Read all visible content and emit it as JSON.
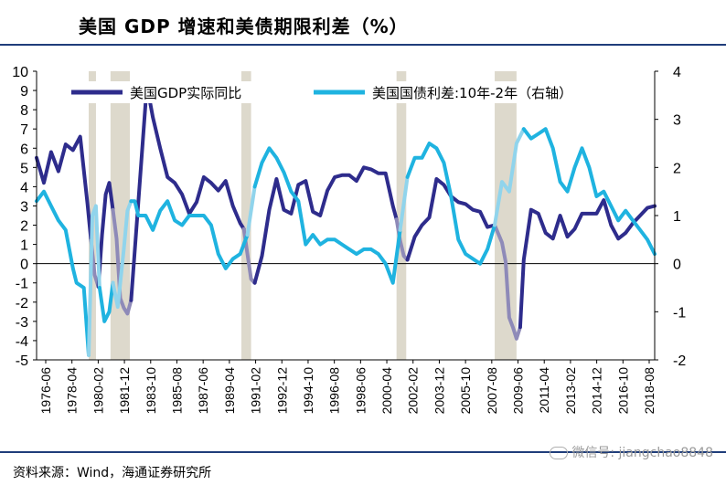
{
  "title": "美国 GDP 增速和美债期限利差（%）",
  "source": "资料来源：Wind，海通证券研究所",
  "watermark": "微信号: jiangchao8848",
  "colors": {
    "gdp": "#2e2c8c",
    "spread": "#1fb3e0",
    "shade": "#ddd9cc",
    "recession_gdp": "#8e8ab8",
    "recession_spread": "#90d4ec"
  },
  "chart_data": {
    "type": "line",
    "title": "美国 GDP 增速和美债期限利差（%）",
    "legend_position": "top",
    "y_left": {
      "ylim": [
        -5,
        10
      ],
      "ticks": [
        -5,
        -4,
        -3,
        -2,
        -1,
        0,
        1,
        2,
        3,
        4,
        5,
        6,
        7,
        8,
        9,
        10
      ]
    },
    "y_right": {
      "ylim": [
        -2,
        4
      ],
      "ticks": [
        -2,
        -1,
        0,
        1,
        2,
        3,
        4
      ]
    },
    "x_range": [
      "1976-06",
      "2018-12"
    ],
    "x_tick_labels": [
      "1976-06",
      "1978-04",
      "1980-02",
      "1981-12",
      "1983-10",
      "1985-08",
      "1987-06",
      "1989-04",
      "1991-02",
      "1992-12",
      "1994-10",
      "1996-08",
      "1998-06",
      "2000-04",
      "2002-02",
      "2003-12",
      "2005-10",
      "2007-08",
      "2009-06",
      "2011-04",
      "2013-02",
      "2014-12",
      "2016-10",
      "2018-08"
    ],
    "recessions": [
      [
        "1980-01",
        "1980-07"
      ],
      [
        "1981-07",
        "1982-11"
      ],
      [
        "1990-07",
        "1991-03"
      ],
      [
        "2001-03",
        "2001-11"
      ],
      [
        "2007-12",
        "2009-06"
      ]
    ],
    "series": [
      {
        "name": "美国GDP实际同比",
        "axis": "left",
        "x": [
          "1976-06",
          "1976-12",
          "1977-06",
          "1977-12",
          "1978-06",
          "1978-12",
          "1979-06",
          "1979-12",
          "1980-03",
          "1980-06",
          "1980-09",
          "1980-12",
          "1981-03",
          "1981-06",
          "1981-09",
          "1981-12",
          "1982-03",
          "1982-06",
          "1982-09",
          "1982-12",
          "1983-06",
          "1983-12",
          "1984-03",
          "1984-06",
          "1984-12",
          "1985-06",
          "1985-12",
          "1986-06",
          "1986-12",
          "1987-06",
          "1987-12",
          "1988-06",
          "1988-12",
          "1989-06",
          "1989-12",
          "1990-06",
          "1990-09",
          "1990-12",
          "1991-03",
          "1991-06",
          "1991-12",
          "1992-06",
          "1992-12",
          "1993-06",
          "1993-12",
          "1994-06",
          "1994-12",
          "1995-06",
          "1995-12",
          "1996-06",
          "1996-12",
          "1997-06",
          "1997-12",
          "1998-06",
          "1998-12",
          "1999-06",
          "1999-12",
          "2000-06",
          "2000-12",
          "2001-03",
          "2001-06",
          "2001-09",
          "2001-12",
          "2002-06",
          "2002-12",
          "2003-06",
          "2003-12",
          "2004-06",
          "2004-12",
          "2005-06",
          "2005-12",
          "2006-06",
          "2006-12",
          "2007-06",
          "2007-12",
          "2008-06",
          "2008-09",
          "2008-12",
          "2009-03",
          "2009-06",
          "2009-09",
          "2009-12",
          "2010-06",
          "2010-12",
          "2011-06",
          "2011-12",
          "2012-06",
          "2012-12",
          "2013-06",
          "2013-12",
          "2014-06",
          "2014-12",
          "2015-06",
          "2015-12",
          "2016-06",
          "2016-12",
          "2017-06",
          "2017-12",
          "2018-06",
          "2018-12"
        ],
        "values": [
          5.5,
          4.2,
          5.8,
          4.8,
          6.2,
          5.9,
          6.6,
          3.1,
          1.2,
          -0.6,
          -1.2,
          1.5,
          3.6,
          4.2,
          2.8,
          1.3,
          -1.8,
          -2.3,
          -2.6,
          -1.9,
          3.2,
          8.4,
          8.6,
          7.6,
          6.0,
          4.5,
          4.2,
          3.6,
          2.6,
          3.2,
          4.5,
          4.2,
          3.8,
          4.3,
          3.0,
          2.1,
          1.8,
          0.5,
          -0.8,
          -1.0,
          0.4,
          2.8,
          4.4,
          2.8,
          2.6,
          4.1,
          4.3,
          2.7,
          2.5,
          3.8,
          4.5,
          4.6,
          4.6,
          4.3,
          5.0,
          4.9,
          4.7,
          4.7,
          3.0,
          2.3,
          1.2,
          0.4,
          0.2,
          1.4,
          2.0,
          2.4,
          4.4,
          4.1,
          3.5,
          3.2,
          3.1,
          2.8,
          2.7,
          1.9,
          2.0,
          1.1,
          0.1,
          -2.8,
          -3.3,
          -3.9,
          -3.3,
          0.2,
          2.8,
          2.6,
          1.6,
          1.3,
          2.5,
          1.4,
          1.8,
          2.6,
          2.6,
          2.6,
          3.3,
          2.0,
          1.3,
          1.6,
          2.1,
          2.5,
          2.9,
          3.0
        ]
      },
      {
        "name": "美国国债利差:10年-2年（右轴）",
        "axis": "right",
        "x": [
          "1976-06",
          "1976-12",
          "1977-06",
          "1977-12",
          "1978-06",
          "1978-12",
          "1979-03",
          "1979-09",
          "1980-01",
          "1980-04",
          "1980-07",
          "1980-10",
          "1981-02",
          "1981-06",
          "1981-09",
          "1982-01",
          "1982-06",
          "1982-09",
          "1982-12",
          "1983-03",
          "1983-06",
          "1983-12",
          "1984-06",
          "1984-12",
          "1985-06",
          "1985-12",
          "1986-06",
          "1986-12",
          "1987-06",
          "1987-12",
          "1988-06",
          "1988-12",
          "1989-06",
          "1989-12",
          "1990-06",
          "1990-12",
          "1991-06",
          "1991-12",
          "1992-06",
          "1992-12",
          "1993-06",
          "1993-12",
          "1994-06",
          "1994-12",
          "1995-06",
          "1995-12",
          "1996-06",
          "1996-12",
          "1997-06",
          "1997-12",
          "1998-06",
          "1998-12",
          "1999-06",
          "1999-12",
          "2000-06",
          "2000-12",
          "2001-06",
          "2001-12",
          "2002-06",
          "2002-12",
          "2003-06",
          "2003-12",
          "2004-06",
          "2004-12",
          "2005-06",
          "2005-12",
          "2006-06",
          "2006-12",
          "2007-06",
          "2007-12",
          "2008-06",
          "2008-12",
          "2009-06",
          "2009-12",
          "2010-06",
          "2010-12",
          "2011-06",
          "2011-12",
          "2012-06",
          "2012-12",
          "2013-06",
          "2013-12",
          "2014-06",
          "2014-12",
          "2015-06",
          "2015-12",
          "2016-06",
          "2016-12",
          "2017-06",
          "2017-12",
          "2018-06",
          "2018-12"
        ],
        "values": [
          1.3,
          1.5,
          1.2,
          0.9,
          0.7,
          -0.1,
          -0.4,
          -0.5,
          -1.9,
          1.0,
          1.2,
          -0.5,
          -1.2,
          -1.0,
          -0.4,
          -0.9,
          0.3,
          1.1,
          1.3,
          1.3,
          1.0,
          1.0,
          0.7,
          1.1,
          1.3,
          0.9,
          0.8,
          1.0,
          1.0,
          1.0,
          0.8,
          0.2,
          -0.1,
          0.1,
          0.2,
          0.6,
          1.6,
          2.1,
          2.4,
          2.2,
          1.9,
          1.5,
          1.3,
          0.4,
          0.6,
          0.4,
          0.5,
          0.5,
          0.4,
          0.3,
          0.2,
          0.3,
          0.3,
          0.2,
          0.0,
          -0.4,
          0.7,
          1.8,
          2.2,
          2.2,
          2.5,
          2.4,
          2.1,
          1.4,
          0.5,
          0.2,
          0.1,
          0.0,
          0.3,
          0.8,
          1.7,
          1.5,
          2.5,
          2.8,
          2.6,
          2.7,
          2.8,
          2.4,
          1.7,
          1.5,
          2.0,
          2.4,
          2.0,
          1.4,
          1.5,
          1.2,
          0.9,
          1.1,
          0.9,
          0.7,
          0.5,
          0.2
        ]
      }
    ]
  }
}
